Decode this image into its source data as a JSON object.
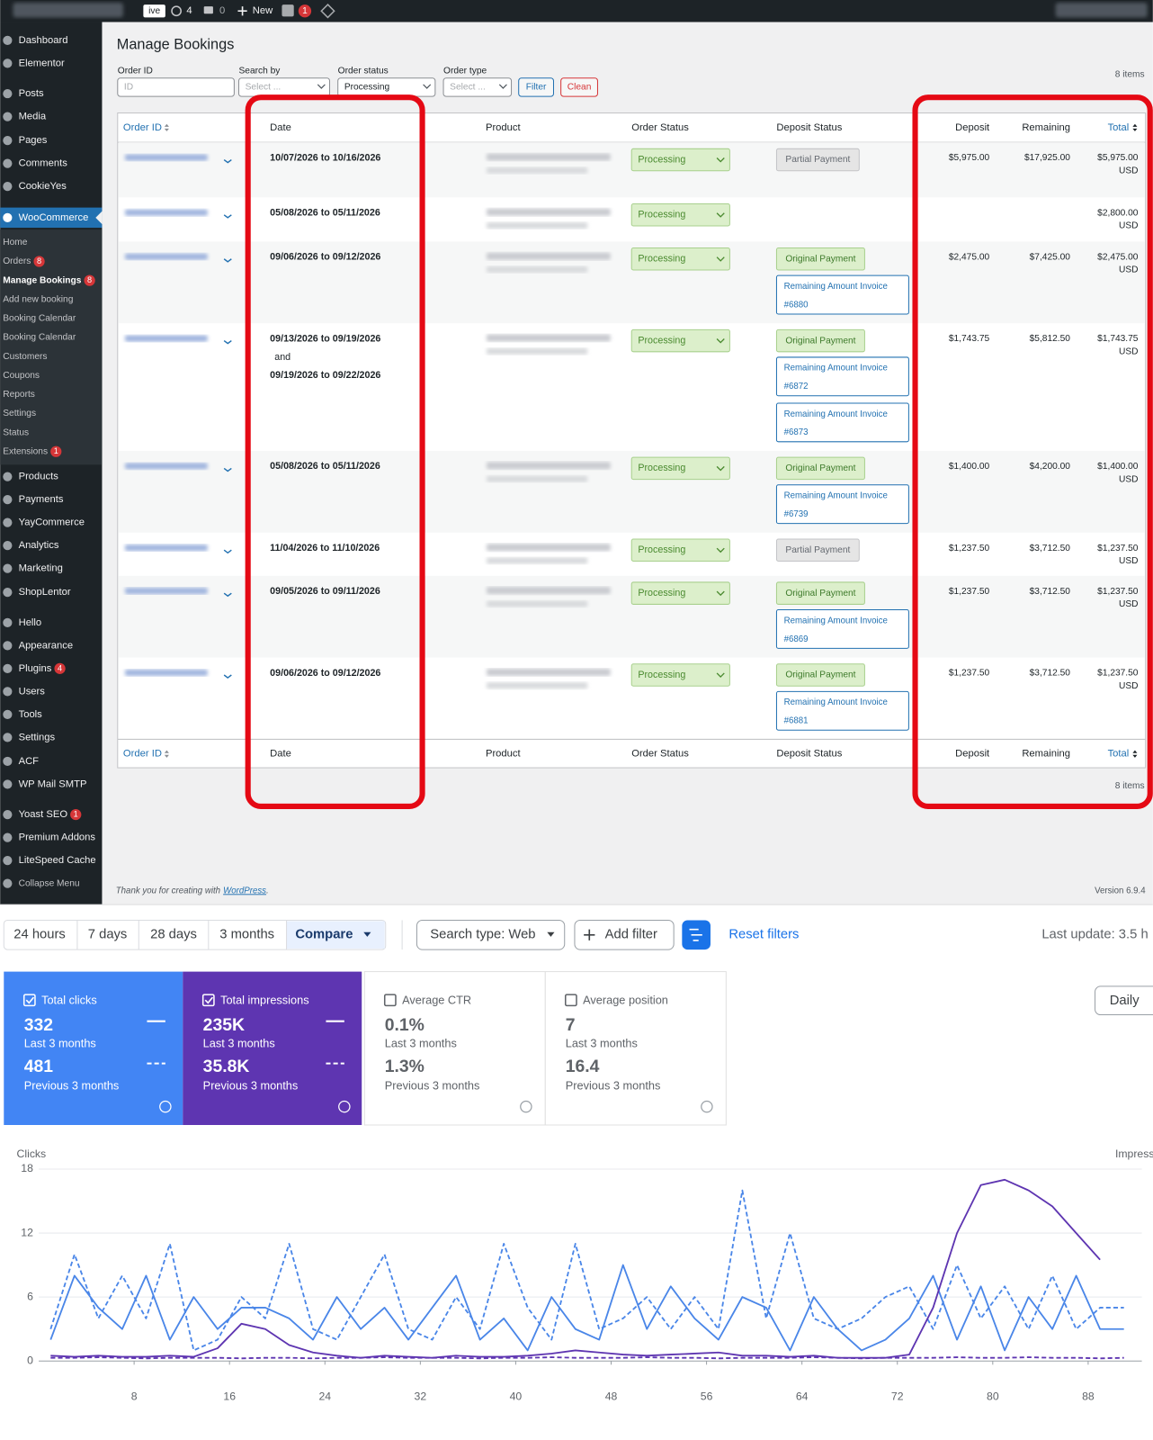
{
  "admin_bar": {
    "site_tag": "ive",
    "updates": "4",
    "comments": "0",
    "new": "New",
    "seo_badge": "1"
  },
  "sidebar": {
    "top": [
      {
        "label": "Dashboard"
      },
      {
        "label": "Elementor"
      },
      {
        "label": "Posts"
      },
      {
        "label": "Media"
      },
      {
        "label": "Pages"
      },
      {
        "label": "Comments"
      },
      {
        "label": "CookieYes"
      }
    ],
    "woocommerce": "WooCommerce",
    "woocommerce_submenu": [
      {
        "label": "Home"
      },
      {
        "label": "Orders",
        "badge": "8"
      },
      {
        "label": "Manage Bookings",
        "badge": "8",
        "current": true
      },
      {
        "label": "Add new booking"
      },
      {
        "label": "Booking Calendar"
      },
      {
        "label": "Booking Calendar"
      },
      {
        "label": "Customers"
      },
      {
        "label": "Coupons"
      },
      {
        "label": "Reports"
      },
      {
        "label": "Settings"
      },
      {
        "label": "Status"
      },
      {
        "label": "Extensions",
        "badge": "1"
      }
    ],
    "bottom": [
      {
        "label": "Products"
      },
      {
        "label": "Payments"
      },
      {
        "label": "YayCommerce"
      },
      {
        "label": "Analytics"
      },
      {
        "label": "Marketing"
      },
      {
        "label": "ShopLentor"
      },
      {
        "label": "Hello"
      },
      {
        "label": "Appearance"
      },
      {
        "label": "Plugins",
        "badge": "4"
      },
      {
        "label": "Users"
      },
      {
        "label": "Tools"
      },
      {
        "label": "Settings"
      },
      {
        "label": "ACF"
      },
      {
        "label": "WP Mail SMTP"
      },
      {
        "label": "Yoast SEO",
        "badge": "1"
      },
      {
        "label": "Premium Addons"
      },
      {
        "label": "LiteSpeed Cache"
      }
    ],
    "collapse": "Collapse Menu"
  },
  "bookings": {
    "title": "Manage Bookings",
    "filters": {
      "order_id": {
        "label": "Order ID",
        "placeholder": "ID"
      },
      "search_by": {
        "label": "Search by",
        "placeholder": "Select ..."
      },
      "order_status": {
        "label": "Order status",
        "value": "Processing"
      },
      "order_type": {
        "label": "Order type",
        "placeholder": "Select ..."
      },
      "filter_button": "Filter",
      "clean_button": "Clean"
    },
    "item_count": "8 items",
    "columns": [
      "Order ID",
      "Date",
      "Product",
      "Order Status",
      "Deposit Status",
      "Deposit",
      "Remaining",
      "Total"
    ],
    "rows": [
      {
        "dates": [
          "10/07/2026 to 10/16/2026"
        ],
        "status": "Processing",
        "deposit_status": [
          {
            "label": "Partial Payment",
            "kind": "partial"
          }
        ],
        "deposit": "$5,975.00",
        "remaining": "$17,925.00",
        "total": "$5,975.00",
        "currency": "USD"
      },
      {
        "dates": [
          "05/08/2026 to 05/11/2026"
        ],
        "status": "Processing",
        "deposit_status": [],
        "total": "$2,800.00",
        "currency": "USD"
      },
      {
        "dates": [
          "09/06/2026 to 09/12/2026"
        ],
        "status": "Processing",
        "deposit_status": [
          {
            "label": "Original Payment",
            "kind": "original"
          },
          {
            "label": "Remaining Amount Invoice",
            "number": "#6880",
            "kind": "invoice"
          }
        ],
        "deposit": "$2,475.00",
        "remaining": "$7,425.00",
        "total": "$2,475.00",
        "currency": "USD"
      },
      {
        "dates": [
          "09/13/2026 to 09/19/2026",
          "and",
          "09/19/2026 to 09/22/2026"
        ],
        "status": "Processing",
        "deposit_status": [
          {
            "label": "Original Payment",
            "kind": "original"
          },
          {
            "label": "Remaining Amount Invoice",
            "number": "#6872",
            "kind": "invoice"
          },
          {
            "label": "Remaining Amount Invoice",
            "number": "#6873",
            "kind": "invoice"
          }
        ],
        "deposit": "$1,743.75",
        "remaining": "$5,812.50",
        "total": "$1,743.75",
        "currency": "USD"
      },
      {
        "dates": [
          "05/08/2026 to 05/11/2026"
        ],
        "status": "Processing",
        "deposit_status": [
          {
            "label": "Original Payment",
            "kind": "original"
          },
          {
            "label": "Remaining Amount Invoice",
            "number": "#6739",
            "kind": "invoice"
          }
        ],
        "deposit": "$1,400.00",
        "remaining": "$4,200.00",
        "total": "$1,400.00",
        "currency": "USD"
      },
      {
        "dates": [
          "11/04/2026 to 11/10/2026"
        ],
        "status": "Processing",
        "deposit_status": [
          {
            "label": "Partial Payment",
            "kind": "partial"
          }
        ],
        "deposit": "$1,237.50",
        "remaining": "$3,712.50",
        "total": "$1,237.50",
        "currency": "USD"
      },
      {
        "dates": [
          "09/05/2026 to 09/11/2026"
        ],
        "status": "Processing",
        "deposit_status": [
          {
            "label": "Original Payment",
            "kind": "original"
          },
          {
            "label": "Remaining Amount Invoice",
            "number": "#6869",
            "kind": "invoice"
          }
        ],
        "deposit": "$1,237.50",
        "remaining": "$3,712.50",
        "total": "$1,237.50",
        "currency": "USD"
      },
      {
        "dates": [
          "09/06/2026 to 09/12/2026"
        ],
        "status": "Processing",
        "deposit_status": [
          {
            "label": "Original Payment",
            "kind": "original"
          },
          {
            "label": "Remaining Amount Invoice",
            "number": "#6881",
            "kind": "invoice"
          }
        ],
        "deposit": "$1,237.50",
        "remaining": "$3,712.50",
        "total": "$1,237.50",
        "currency": "USD"
      }
    ]
  },
  "footer": {
    "thanks": "Thank you for creating with",
    "link": "WordPress",
    "end": ".",
    "version": "Version 6.9.4"
  },
  "search_console": {
    "ranges": [
      "24 hours",
      "7 days",
      "28 days",
      "3 months"
    ],
    "compare": "Compare",
    "search_type": "Search type: Web",
    "add_filter": "Add filter",
    "reset_filters": "Reset filters",
    "last_update": "Last update: 3.5 h",
    "daily": "Daily",
    "cards": [
      {
        "name": "Total clicks",
        "current": "332",
        "current_label": "Last 3 months",
        "previous": "481",
        "previous_label": "Previous 3 months",
        "selected": true,
        "color": "#4285f4"
      },
      {
        "name": "Total impressions",
        "current": "235K",
        "current_label": "Last 3 months",
        "previous": "35.8K",
        "previous_label": "Previous 3 months",
        "selected": true,
        "color": "#5e35b1"
      },
      {
        "name": "Average CTR",
        "current": "0.1%",
        "current_label": "Last 3 months",
        "previous": "1.3%",
        "previous_label": "Previous 3 months",
        "selected": false
      },
      {
        "name": "Average position",
        "current": "7",
        "current_label": "Last 3 months",
        "previous": "16.4",
        "previous_label": "Previous 3 months",
        "selected": false
      }
    ]
  },
  "chart_data": {
    "type": "line",
    "y_label": "Clicks",
    "y2_label": "Impress",
    "x": [
      1,
      3,
      5,
      7,
      9,
      11,
      13,
      15,
      17,
      19,
      21,
      23,
      25,
      27,
      29,
      31,
      33,
      35,
      37,
      39,
      41,
      43,
      45,
      47,
      49,
      51,
      53,
      55,
      57,
      59,
      61,
      63,
      65,
      67,
      69,
      71,
      73,
      75,
      77,
      79,
      81,
      83,
      85,
      87,
      89,
      91
    ],
    "xlim": [
      0,
      92.5
    ],
    "xticks": [
      8,
      16,
      24,
      32,
      40,
      48,
      56,
      64,
      72,
      80,
      88
    ],
    "ylim": [
      0,
      18
    ],
    "yticks": [
      0,
      6,
      12,
      18
    ],
    "y2lim": [
      0,
      18000
    ],
    "grid": true,
    "series": [
      {
        "name": "Clicks",
        "color": "#4a86e8",
        "dashed": false,
        "values": [
          2,
          8,
          5,
          3,
          8,
          2,
          6,
          3,
          5,
          5,
          4,
          2,
          6,
          3,
          5,
          2,
          5,
          8,
          2,
          4,
          1,
          6,
          3,
          2,
          9,
          3,
          7,
          4,
          2,
          6,
          5,
          1,
          6,
          3,
          1,
          2,
          4,
          8,
          2,
          7,
          1,
          6,
          3,
          8,
          3,
          3
        ]
      },
      {
        "name": "Clicks",
        "color": "#4a86e8",
        "dashed": true,
        "values": [
          3,
          10,
          4,
          8,
          4,
          11,
          1,
          2,
          6,
          4,
          11,
          3,
          2,
          6,
          10,
          3,
          2,
          6,
          3,
          11,
          5,
          2,
          11,
          3,
          4,
          6,
          3,
          6,
          3,
          16,
          4,
          12,
          4,
          3,
          4,
          6,
          7,
          3,
          9,
          4,
          7,
          3,
          8,
          3,
          5,
          5
        ]
      },
      {
        "name": "Impressions",
        "color": "#5e35b1",
        "dashed": false,
        "axis": "y2",
        "values": [
          500,
          400,
          500,
          400,
          400,
          500,
          400,
          1200,
          3500,
          3000,
          1500,
          800,
          500,
          300,
          500,
          400,
          300,
          500,
          400,
          400,
          500,
          700,
          1000,
          800,
          600,
          500,
          600,
          700,
          800,
          500,
          500,
          400,
          500,
          300,
          300,
          300,
          600,
          5000,
          12000,
          16500,
          17000,
          16000,
          14500,
          12000,
          9500,
          null
        ]
      },
      {
        "name": "Impressions",
        "color": "#5e35b1",
        "dashed": true,
        "axis": "y2",
        "values": [
          300,
          300,
          350,
          300,
          250,
          300,
          300,
          300,
          250,
          300,
          300,
          250,
          300,
          300,
          350,
          300,
          300,
          300,
          250,
          300,
          300,
          350,
          300,
          300,
          300,
          350,
          300,
          300,
          250,
          300,
          300,
          300,
          350,
          300,
          250,
          300,
          300,
          300,
          350,
          300,
          300,
          350,
          300,
          300,
          250,
          300
        ]
      }
    ]
  }
}
